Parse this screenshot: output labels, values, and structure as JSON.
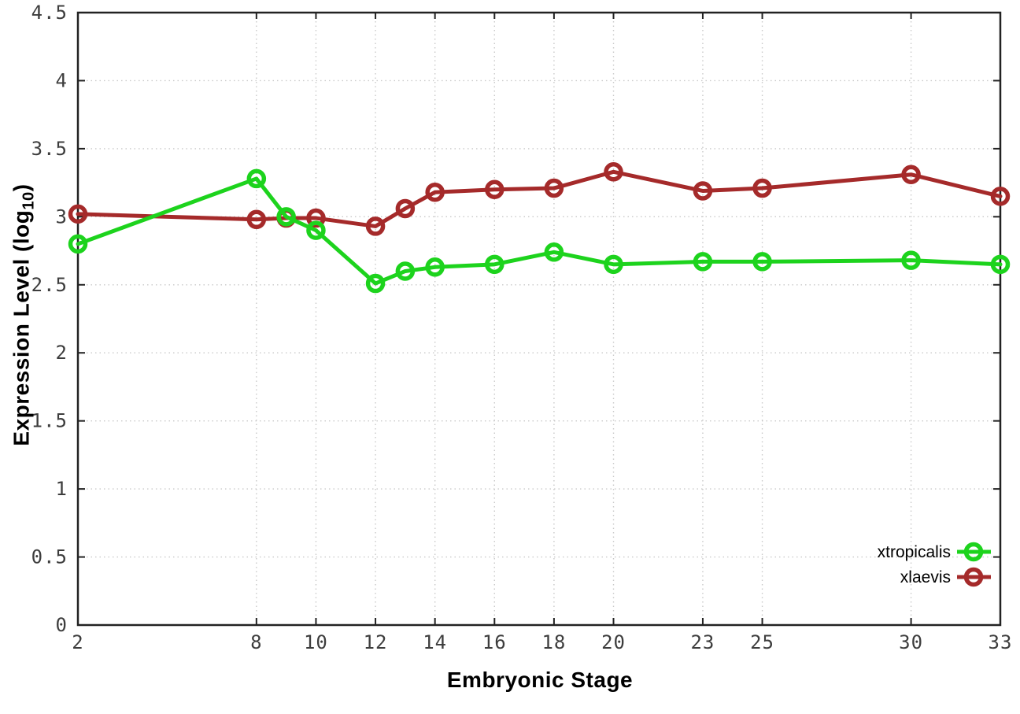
{
  "figure": {
    "xlabel": "Embryonic Stage",
    "ylabel_plain": "Expression Level (log10)",
    "ylabel_parts": {
      "pre": "Expression Level (log",
      "sub": "10",
      "post": ")"
    }
  },
  "chart_data": {
    "type": "line",
    "title": "",
    "xlabel": "Embryonic Stage",
    "ylabel": "Expression Level (log10)",
    "xlim": [
      2,
      33
    ],
    "ylim": [
      0,
      4.5
    ],
    "grid": true,
    "legend_position": "bottom-right",
    "x": [
      2,
      8,
      9,
      10,
      12,
      13,
      14,
      16,
      18,
      20,
      23,
      25,
      30,
      33
    ],
    "xticks": {
      "values": [
        2,
        8,
        10,
        12,
        14,
        16,
        18,
        20,
        23,
        25,
        30,
        33
      ],
      "labels": [
        "2",
        "8",
        "10",
        "12",
        "14",
        "16",
        "18",
        "20",
        "23",
        "25",
        "30",
        "33"
      ]
    },
    "yticks": {
      "values": [
        0,
        0.5,
        1,
        1.5,
        2,
        2.5,
        3,
        3.5,
        4,
        4.5
      ],
      "labels": [
        "0",
        "0.5",
        "1",
        "1.5",
        "2",
        "2.5",
        "3",
        "3.5",
        "4",
        "4.5"
      ]
    },
    "series": [
      {
        "name": "xtropicalis",
        "color": "#1dd31d",
        "values": [
          2.8,
          3.28,
          3.0,
          2.9,
          2.51,
          2.6,
          2.63,
          2.65,
          2.74,
          2.65,
          2.67,
          2.67,
          2.68,
          2.65
        ]
      },
      {
        "name": "xlaevis",
        "color": "#a52a2a",
        "values": [
          3.02,
          2.98,
          2.99,
          2.99,
          2.93,
          3.06,
          3.18,
          3.2,
          3.21,
          3.33,
          3.19,
          3.21,
          3.31,
          3.15
        ]
      }
    ],
    "style": {
      "axis_color": "#222222",
      "grid_color": "#c9c9c9",
      "tick_label_color": "#3d3d3d",
      "legend_text_color": "#000000"
    }
  }
}
